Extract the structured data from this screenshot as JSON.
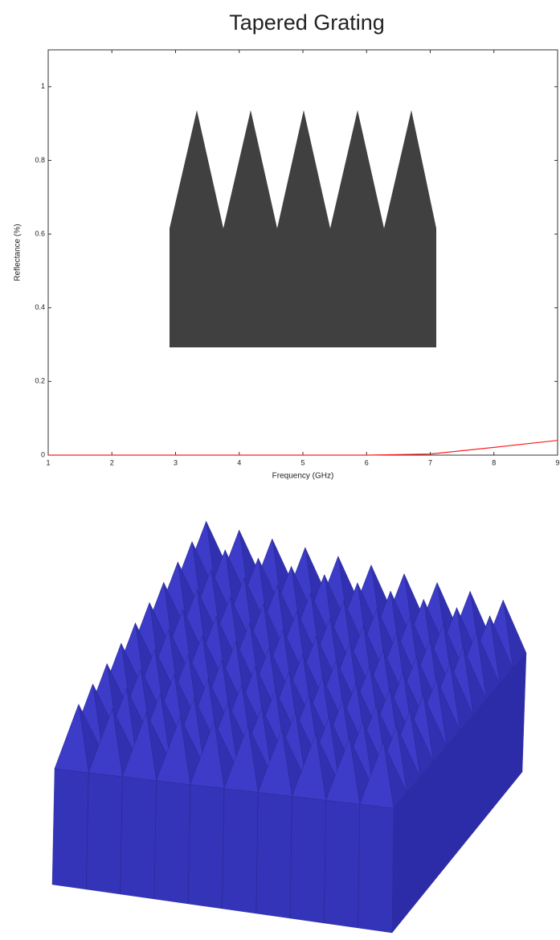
{
  "chart_data": {
    "type": "line",
    "title": "Tapered Grating",
    "x_label": "Frequency (GHz)",
    "y_label": "Reflectance (%)",
    "x": [
      1,
      2,
      3,
      4,
      5,
      6,
      7,
      8,
      9
    ],
    "values": [
      0,
      0,
      0,
      0,
      0,
      0,
      0.003,
      0.021,
      0.04
    ],
    "color": "#ff2020",
    "xlim": [
      1,
      9
    ],
    "ylim": [
      0,
      1.1
    ],
    "xticks": [
      1,
      2,
      3,
      4,
      5,
      6,
      7,
      8,
      9
    ],
    "yticks": [
      0,
      0.2,
      0.4,
      0.6,
      0.8,
      1
    ],
    "grid": false
  }
}
